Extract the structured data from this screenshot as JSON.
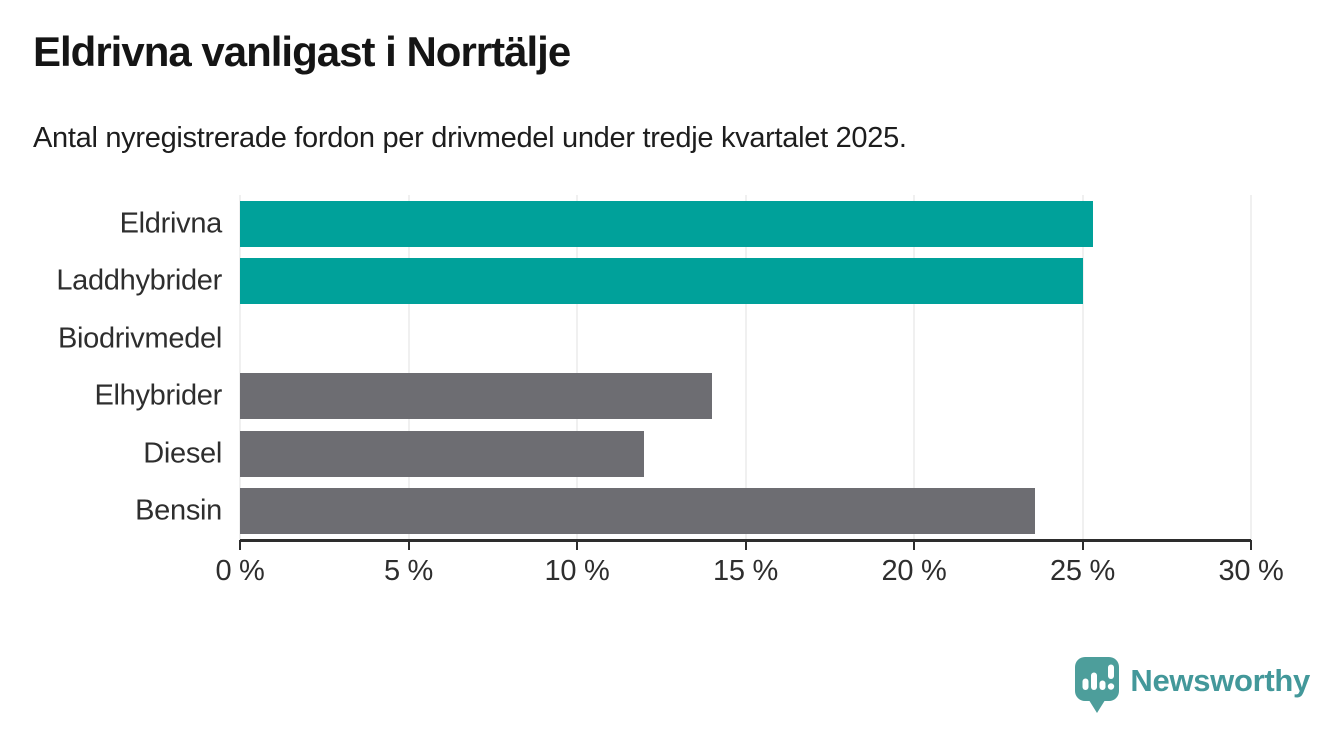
{
  "header": {
    "title": "Eldrivna vanligast i Norrtälje",
    "subtitle": "Antal nyregistrerade fordon per drivmedel under tredje kvartalet 2025."
  },
  "chart_data": {
    "type": "bar",
    "orientation": "horizontal",
    "title": "Eldrivna vanligast i Norrtälje",
    "subtitle": "Antal nyregistrerade fordon per drivmedel under tredje kvartalet 2025.",
    "categories": [
      "Eldrivna",
      "Laddhybrider",
      "Biodrivmedel",
      "Elhybrider",
      "Diesel",
      "Bensin"
    ],
    "values": [
      25.3,
      25.0,
      0,
      14.0,
      12.0,
      23.6
    ],
    "unit": "%",
    "xlabel": "",
    "ylabel": "",
    "xlim": [
      0,
      30
    ],
    "x_ticks": [
      0,
      5,
      10,
      15,
      20,
      25,
      30
    ],
    "x_tick_labels": [
      "0 %",
      "5 %",
      "10 %",
      "15 %",
      "20 %",
      "25 %",
      "30 %"
    ],
    "bar_colors": [
      "#00a19a",
      "#00a19a",
      "#6d6d72",
      "#6d6d72",
      "#6d6d72",
      "#6d6d72"
    ],
    "highlight_color": "#00a19a",
    "default_color": "#6d6d72",
    "grid": true,
    "grid_color": "#e0e0e0",
    "axis_color": "#2d2d2d",
    "legend": "none"
  },
  "footer": {
    "brand": "Newsworthy",
    "brand_color": "#43989a",
    "logo_color": "#4d9e9b",
    "logo_icon": "speech-bubble-bar-chart-exclamation"
  }
}
